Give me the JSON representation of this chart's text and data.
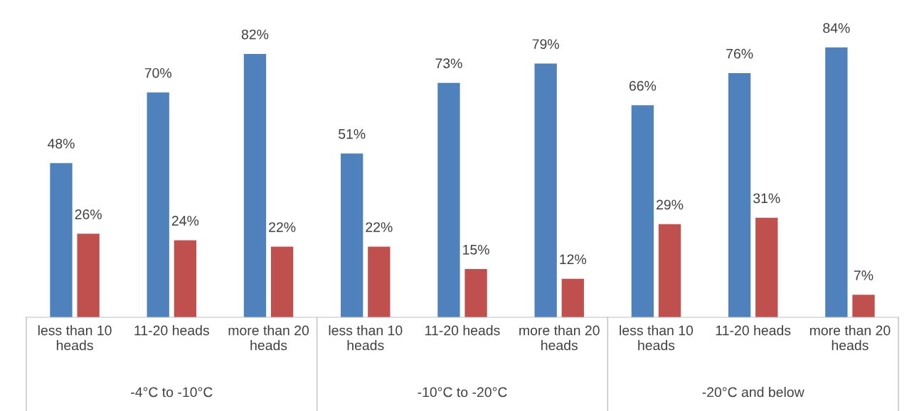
{
  "chart_data": {
    "type": "bar",
    "categories": [
      "less than 10 heads",
      "11-20 heads",
      "more than 20 heads",
      "less than 10 heads",
      "11-20 heads",
      "more than 20 heads",
      "less than 10 heads",
      "11-20 heads",
      "more than 20 heads"
    ],
    "series": [
      {
        "color": "#4f81bd",
        "values": [
          48,
          70,
          82,
          51,
          73,
          79,
          66,
          76,
          84
        ],
        "value_labels": [
          "48%",
          "70%",
          "82%",
          "51%",
          "73%",
          "79%",
          "66%",
          "76%",
          "84%"
        ]
      },
      {
        "color": "#c0504d",
        "values": [
          26,
          24,
          22,
          22,
          15,
          12,
          29,
          31,
          7
        ],
        "value_labels": [
          "26%",
          "24%",
          "22%",
          "22%",
          "15%",
          "12%",
          "29%",
          "31%",
          "7%"
        ]
      }
    ],
    "annotations": [
      "-4°C to -10°C",
      "-10°C to -20°C",
      "-20°C and below"
    ],
    "grid": false,
    "legend": false
  }
}
